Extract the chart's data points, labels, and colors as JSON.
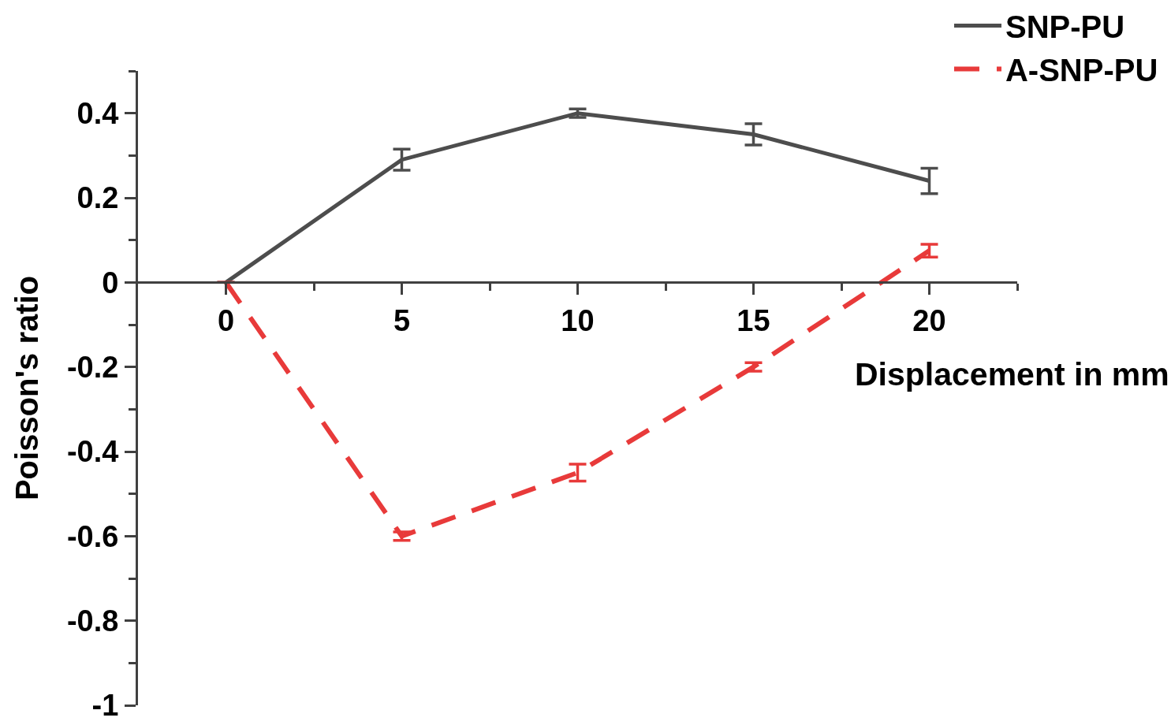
{
  "chart_data": {
    "type": "line",
    "xlabel": "Displacement in mm",
    "ylabel": "Poisson's ratio",
    "x": [
      0,
      5,
      10,
      15,
      20
    ],
    "series": [
      {
        "name": "SNP-PU",
        "color": "#4d4d4d",
        "line_style": "solid",
        "values": [
          0,
          0.29,
          0.4,
          0.35,
          0.24
        ],
        "errors": [
          null,
          0.025,
          0.01,
          0.025,
          0.03
        ]
      },
      {
        "name": "A-SNP-PU",
        "color": "#e83a3a",
        "line_style": "dashed",
        "values": [
          0,
          -0.6,
          -0.45,
          -0.2,
          0.075
        ],
        "errors": [
          null,
          0.01,
          0.02,
          0.01,
          0.015
        ]
      }
    ],
    "xlim": [
      -2.5,
      22.5
    ],
    "xticks": [
      0,
      5,
      10,
      15,
      20,
      {
        "value": 2.5,
        "label": null
      },
      {
        "value": 7.5,
        "label": null
      },
      {
        "value": 12.5,
        "label": null
      },
      {
        "value": 17.5,
        "label": null
      },
      {
        "value": 22.5,
        "label": null
      }
    ],
    "ylim": [
      -1,
      0.5
    ],
    "yticks": [
      {
        "value": -1,
        "label": "-1"
      },
      {
        "value": -0.8,
        "label": "-0.8"
      },
      {
        "value": -0.6,
        "label": "-0.6"
      },
      {
        "value": -0.4,
        "label": "-0.4"
      },
      {
        "value": -0.2,
        "label": "-0.2"
      },
      0,
      {
        "value": 0.2,
        "label": "0.2"
      },
      {
        "value": 0.4,
        "label": "0.4"
      },
      {
        "value": -0.9,
        "label": null
      },
      {
        "value": -0.7,
        "label": null
      },
      {
        "value": -0.5,
        "label": null
      },
      {
        "value": -0.3,
        "label": null
      },
      {
        "value": -0.1,
        "label": null
      },
      {
        "value": 0.1,
        "label": null
      },
      {
        "value": 0.3,
        "label": null
      },
      {
        "value": 0.5,
        "label": null
      }
    ],
    "legend": "top right"
  }
}
